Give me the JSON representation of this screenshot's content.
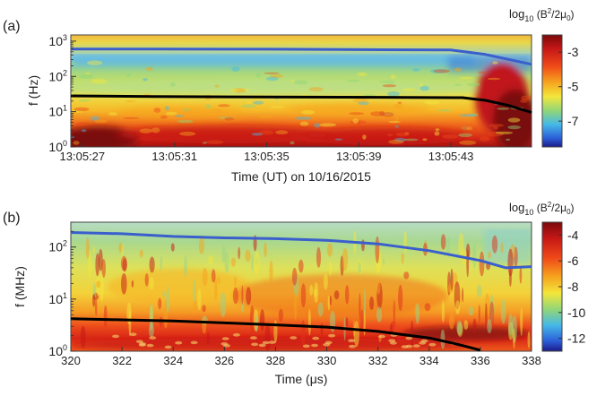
{
  "chart_data": [
    {
      "panel": "(a)",
      "type": "heatmap",
      "xlabel": "Time (UT) on 10/16/2015",
      "ylabel": "f (Hz)",
      "y_scale": "log",
      "ylim": [
        1,
        1500
      ],
      "x_tick_labels": [
        "13:05:27",
        "13:05:31",
        "13:05:35",
        "13:05:39",
        "13:05:43"
      ],
      "x_tick_values_s": [
        27,
        31,
        35,
        39,
        43
      ],
      "xlim_s": [
        26.5,
        46.5
      ],
      "y_tick_labels": [
        {
          "base": "10",
          "exp": "0"
        },
        {
          "base": "10",
          "exp": "1"
        },
        {
          "base": "10",
          "exp": "2"
        },
        {
          "base": "10",
          "exp": "3"
        }
      ],
      "y_tick_values": [
        1,
        10,
        100,
        1000
      ],
      "colorbar": {
        "title_base": "log",
        "title_sub": "10",
        "title_expr": " (B",
        "title_sup": "2",
        "title_rest": "/2μ",
        "title_sub2": "0",
        "title_close": ")",
        "tick_labels": [
          "-3",
          "-5",
          "-7"
        ],
        "tick_values": [
          -3,
          -5,
          -7
        ],
        "range": [
          -8.5,
          -2
        ]
      },
      "series": [
        {
          "color": "#3a5fcd",
          "points": [
            [
              26.5,
              600
            ],
            [
              30,
              600
            ],
            [
              35,
              590
            ],
            [
              40,
              570
            ],
            [
              43,
              560
            ],
            [
              44.5,
              420
            ],
            [
              46.5,
              220
            ]
          ]
        },
        {
          "color": "#000000",
          "points": [
            [
              26.5,
              28
            ],
            [
              30,
              27
            ],
            [
              35,
              26
            ],
            [
              40,
              25.5
            ],
            [
              43.5,
              25
            ],
            [
              44.5,
              21
            ],
            [
              45.5,
              15
            ],
            [
              46.5,
              9.5
            ]
          ]
        }
      ]
    },
    {
      "panel": "(b)",
      "type": "heatmap",
      "xlabel": "Time (μs)",
      "ylabel": "f (MHz)",
      "y_scale": "log",
      "ylim": [
        1,
        300
      ],
      "x_tick_labels": [
        "320",
        "322",
        "324",
        "326",
        "328",
        "330",
        "332",
        "334",
        "336",
        "338"
      ],
      "x_tick_values": [
        320,
        322,
        324,
        326,
        328,
        330,
        332,
        334,
        336,
        338
      ],
      "xlim": [
        320,
        338
      ],
      "y_tick_labels": [
        {
          "base": "10",
          "exp": "0"
        },
        {
          "base": "10",
          "exp": "1"
        },
        {
          "base": "10",
          "exp": "2"
        }
      ],
      "y_tick_values": [
        1,
        10,
        100
      ],
      "colorbar": {
        "title_base": "log",
        "title_sub": "10",
        "title_expr": " (B",
        "title_sup": "2",
        "title_rest": "/2μ",
        "title_sub2": "0",
        "title_close": ")",
        "tick_labels": [
          "-4",
          "-6",
          "-8",
          "-10",
          "-12"
        ],
        "tick_values": [
          -4,
          -6,
          -8,
          -10,
          -12
        ],
        "range": [
          -13,
          -3
        ]
      },
      "series": [
        {
          "color": "#3a5fcd",
          "points": [
            [
              320,
              190
            ],
            [
              322,
              180
            ],
            [
              324,
              160
            ],
            [
              326,
              150
            ],
            [
              328,
              145
            ],
            [
              330,
              135
            ],
            [
              332,
              115
            ],
            [
              334,
              85
            ],
            [
              336,
              55
            ],
            [
              337,
              40
            ],
            [
              338,
              42
            ]
          ]
        },
        {
          "color": "#000000",
          "points": [
            [
              320,
              4.2
            ],
            [
              322,
              4.0
            ],
            [
              324,
              3.8
            ],
            [
              326,
              3.5
            ],
            [
              328,
              3.2
            ],
            [
              330,
              2.9
            ],
            [
              332,
              2.4
            ],
            [
              334,
              1.8
            ],
            [
              335,
              1.4
            ],
            [
              336,
              1.05
            ]
          ]
        }
      ]
    }
  ]
}
